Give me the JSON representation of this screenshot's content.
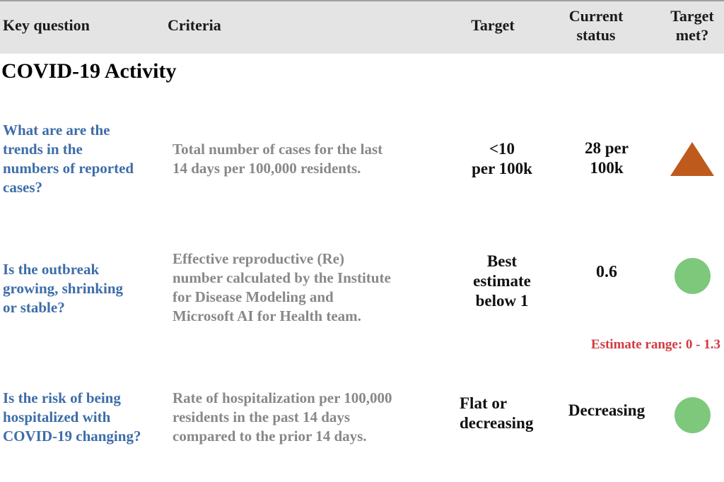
{
  "table": {
    "headers": {
      "key_question": "Key question",
      "criteria": "Criteria",
      "target": "Target",
      "current_status": "Current\nstatus",
      "target_met": "Target\nmet?"
    },
    "section_title": "COVID-19 Activity",
    "rows": [
      {
        "key_question": "What are are the\ntrends in the\nnumbers of reported\ncases?",
        "criteria": "Total number of cases for the last\n14 days per 100,000 residents.",
        "target": "<10\nper 100k",
        "current_status": "28 per\n100k",
        "target_met_indicator": "triangle-up",
        "target_met_color": "#bf5a1d",
        "target_met_meaning": "target not met"
      },
      {
        "key_question": "Is the outbreak\ngrowing, shrinking\nor stable?",
        "criteria": "Effective reproductive (Re)\nnumber calculated by the Institute\nfor Disease Modeling and\nMicrosoft AI for Health team.",
        "target": "Best\nestimate\nbelow 1",
        "current_status": "0.6",
        "target_met_indicator": "circle",
        "target_met_color": "#7ec87c",
        "target_met_meaning": "target met",
        "note": "Estimate range: 0 - 1.3",
        "note_color": "#d23b41"
      },
      {
        "key_question": "Is the risk of being\nhospitalized with\nCOVID-19 changing?",
        "criteria": "Rate of hospitalization per 100,000\nresidents in the past 14 days\ncompared to the prior 14 days.",
        "target": "Flat or\ndecreasing",
        "current_status": "Decreasing",
        "target_met_indicator": "circle",
        "target_met_color": "#7ec87c",
        "target_met_meaning": "target met"
      }
    ]
  },
  "colors": {
    "header_bg": "#e4e4e4",
    "question_blue": "#3d6da8",
    "criteria_gray": "#87888a",
    "text_black": "#101010",
    "not_met_orange": "#bf5a1d",
    "met_green": "#7ec87c",
    "note_red": "#d23b41"
  }
}
